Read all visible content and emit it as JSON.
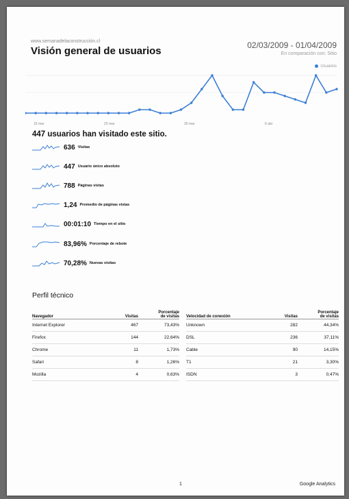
{
  "header": {
    "site": "www.semanadelaconstrucción.cl",
    "title": "Visión general de usuarios",
    "date_range": "02/03/2009 - 01/04/2009",
    "comparison": "En comparación con: Sitio",
    "legend": "Usuarios"
  },
  "chart_data": {
    "type": "line",
    "x_labels": [
      "16 mar",
      "23 mar",
      "30 mar",
      "6 abr"
    ],
    "series": [
      {
        "name": "",
        "values": [
          1,
          1,
          1,
          1,
          1,
          1,
          1,
          1,
          1,
          1,
          1,
          2,
          2,
          1,
          1,
          2,
          4,
          8,
          12,
          6,
          2,
          2,
          10,
          7,
          7,
          6,
          5,
          4,
          12,
          7,
          8
        ],
        "color": "#3a7ed6"
      }
    ],
    "ylim": [
      0,
      14
    ],
    "grid": true
  },
  "summary": "447 usuarios han visitado este sitio.",
  "metrics": [
    {
      "value": "636",
      "label": "Visitas"
    },
    {
      "value": "447",
      "label": "Usuario único absoluto"
    },
    {
      "value": "788",
      "label": "Páginas vistas"
    },
    {
      "value": "1,24",
      "label": "Promedio de páginas vistas"
    },
    {
      "value": "00:01:10",
      "label": "Tiempo en el sitio"
    },
    {
      "value": "83,96%",
      "label": "Porcentaje de rebote"
    },
    {
      "value": "70,28%",
      "label": "Nuevas visitas"
    }
  ],
  "perfil_title": "Perfil técnico",
  "browser_table": {
    "headers": [
      "Navegador",
      "Visitas",
      "Porcentaje de visitas"
    ],
    "rows": [
      [
        "Internet Explorer",
        "467",
        "73,43%"
      ],
      [
        "Firefox",
        "144",
        "22,64%"
      ],
      [
        "Chrome",
        "11",
        "1,73%"
      ],
      [
        "Safari",
        "8",
        "1,26%"
      ],
      [
        "Mozilla",
        "4",
        "0,63%"
      ]
    ]
  },
  "connection_table": {
    "headers": [
      "Velocidad de conexión",
      "Visitas",
      "Porcentaje de visitas"
    ],
    "rows": [
      [
        "Unknown",
        "282",
        "44,34%"
      ],
      [
        "DSL",
        "236",
        "37,11%"
      ],
      [
        "Cable",
        "90",
        "14,15%"
      ],
      [
        "T1",
        "21",
        "3,30%"
      ],
      [
        "ISDN",
        "3",
        "0,47%"
      ]
    ]
  },
  "footer": {
    "page_number": "1",
    "brand": "Google Analytics"
  }
}
